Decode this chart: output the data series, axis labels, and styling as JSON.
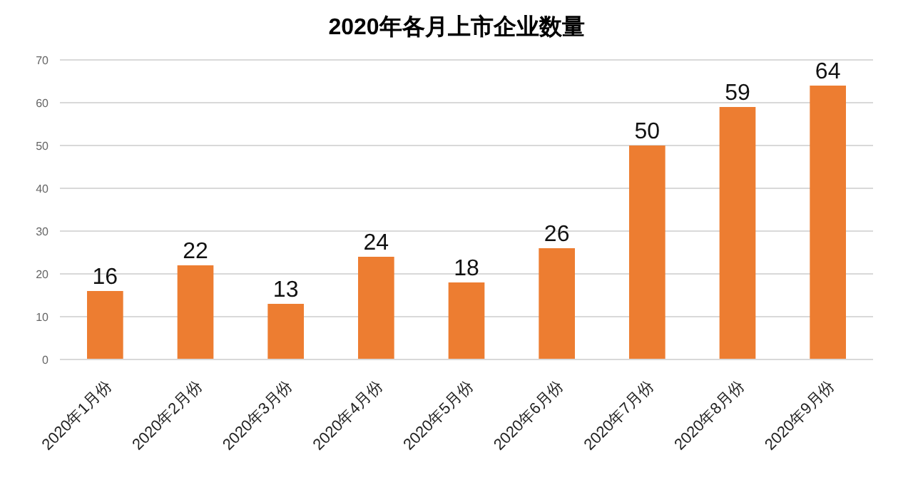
{
  "chart_data": {
    "type": "bar",
    "title": "2020年各月上市企业数量",
    "categories": [
      "2020年1月份",
      "2020年2月份",
      "2020年3月份",
      "2020年4月份",
      "2020年5月份",
      "2020年6月份",
      "2020年7月份",
      "2020年8月份",
      "2020年9月份"
    ],
    "values": [
      16,
      22,
      13,
      24,
      18,
      26,
      50,
      59,
      64
    ],
    "color": "#ed7d31",
    "ylim": [
      0,
      70
    ],
    "yticks": [
      0,
      10,
      20,
      30,
      40,
      50,
      60,
      70
    ],
    "grid": "y",
    "data_labels": true
  }
}
